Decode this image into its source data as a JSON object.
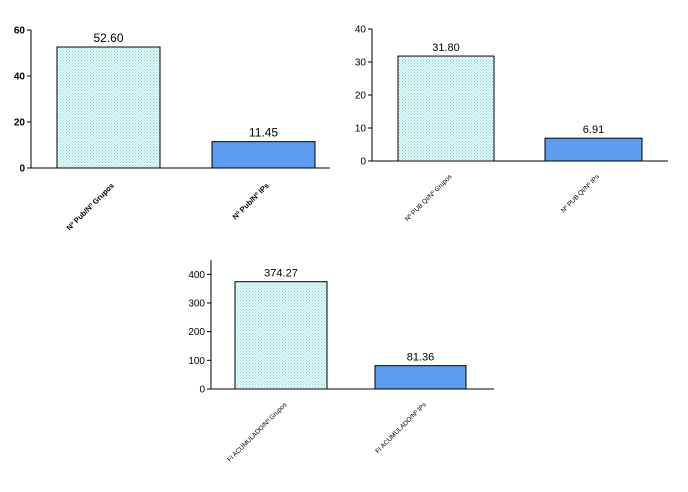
{
  "colors": {
    "background": "#ffffff",
    "dotted_fill": "#e6fafa",
    "dotted_dot": "#7fd7d7",
    "blue_fill": "#5b9bf0",
    "axis": "#000000"
  },
  "chart_data": [
    {
      "type": "bar",
      "categories": [
        "Nº Pub/Nº Grupos",
        "Nº Pub/Nº IPs"
      ],
      "values": [
        52.6,
        11.45
      ],
      "value_labels": [
        "52.60",
        "11.45"
      ],
      "ylim": [
        0,
        60
      ],
      "yticks": [
        0,
        20,
        40,
        60
      ],
      "ytick_labels": [
        "0",
        "20",
        "40",
        "60"
      ],
      "bar_styles": [
        "dotted",
        "solid-blue"
      ],
      "tick_label_weight": "bold",
      "grid": false,
      "title": "",
      "xlabel": "",
      "ylabel": ""
    },
    {
      "type": "bar",
      "categories": [
        "Nº PUB QI/Nº Grupos",
        "Nº PUB QI/Nº IPs"
      ],
      "values": [
        31.8,
        6.91
      ],
      "value_labels": [
        "31.80",
        "6.91"
      ],
      "ylim": [
        0,
        40
      ],
      "yticks": [
        0,
        10,
        20,
        30,
        40
      ],
      "ytick_labels": [
        "0",
        "10",
        "20",
        "30",
        "40"
      ],
      "bar_styles": [
        "dotted",
        "solid-blue"
      ],
      "tick_label_weight": "normal",
      "grid": false,
      "title": "",
      "xlabel": "",
      "ylabel": ""
    },
    {
      "type": "bar",
      "categories": [
        "FI ACUMULADO/Nº Grupos",
        "FI ACUMULADO/Nº IPs"
      ],
      "values": [
        374.27,
        81.36
      ],
      "value_labels": [
        "374.27",
        "81.36"
      ],
      "ylim": [
        0,
        450
      ],
      "yticks": [
        0,
        100,
        200,
        300,
        400
      ],
      "ytick_labels": [
        "0",
        "100",
        "200",
        "300",
        "400"
      ],
      "bar_styles": [
        "dotted",
        "solid-blue"
      ],
      "tick_label_weight": "normal",
      "grid": false,
      "title": "",
      "xlabel": "",
      "ylabel": ""
    }
  ]
}
